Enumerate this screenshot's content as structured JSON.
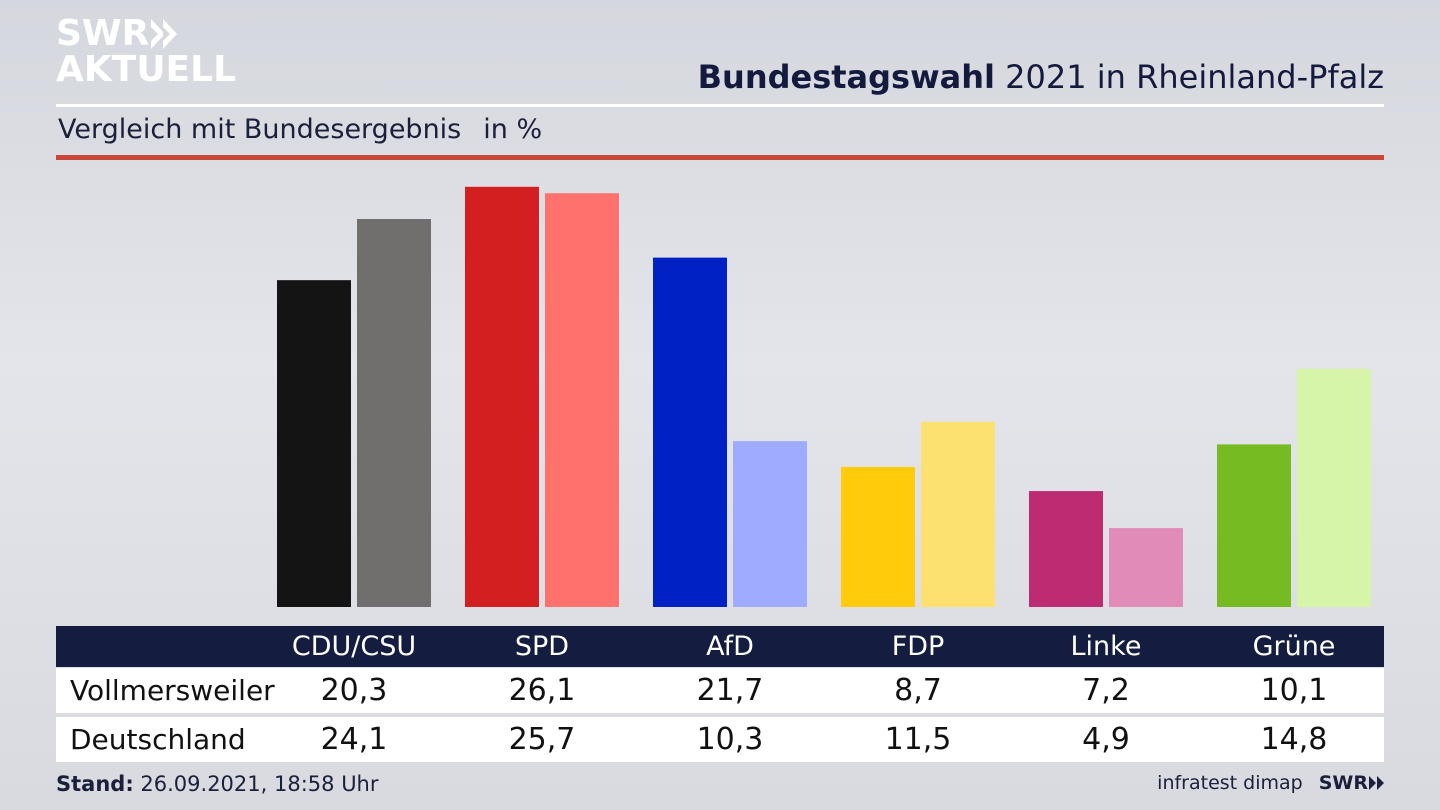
{
  "header": {
    "logo_top": "SWR",
    "logo_bottom": "AKTUELL",
    "title_bold": "Bundestagswahl",
    "title_rest": "2021 in Rheinland-Pfalz",
    "subtitle": "Vergleich mit Bundesergebnis",
    "unit": "in %"
  },
  "colors": {
    "CDU/CSU": [
      "#141414",
      "#706f6d"
    ],
    "SPD": [
      "#d41f20",
      "#ff716d"
    ],
    "AfD": [
      "#0021c4",
      "#9fabff"
    ],
    "FDP": [
      "#ffcb0a",
      "#fde170"
    ],
    "Linke": [
      "#bd2c72",
      "#e18bb8"
    ],
    "Grüne": [
      "#76bb22",
      "#d6f5a9"
    ]
  },
  "chart_data": {
    "type": "bar",
    "categories": [
      "CDU/CSU",
      "SPD",
      "AfD",
      "FDP",
      "Linke",
      "Grüne"
    ],
    "series": [
      {
        "name": "Vollmersweiler",
        "values": [
          20.3,
          26.1,
          21.7,
          8.7,
          7.2,
          10.1
        ]
      },
      {
        "name": "Deutschland",
        "values": [
          24.1,
          25.7,
          10.3,
          11.5,
          4.9,
          14.8
        ]
      }
    ],
    "series_display": [
      [
        "20,3",
        "26,1",
        "21,7",
        "8,7",
        "7,2",
        "10,1"
      ],
      [
        "24,1",
        "25,7",
        "10,3",
        "11,5",
        "4,9",
        "14,8"
      ]
    ],
    "ylabel": "in %",
    "grid": false
  },
  "footer": {
    "stand_label": "Stand:",
    "stand_value": "26.09.2021, 18:58 Uhr",
    "source": "infratest dimap",
    "brand": "SWR"
  }
}
